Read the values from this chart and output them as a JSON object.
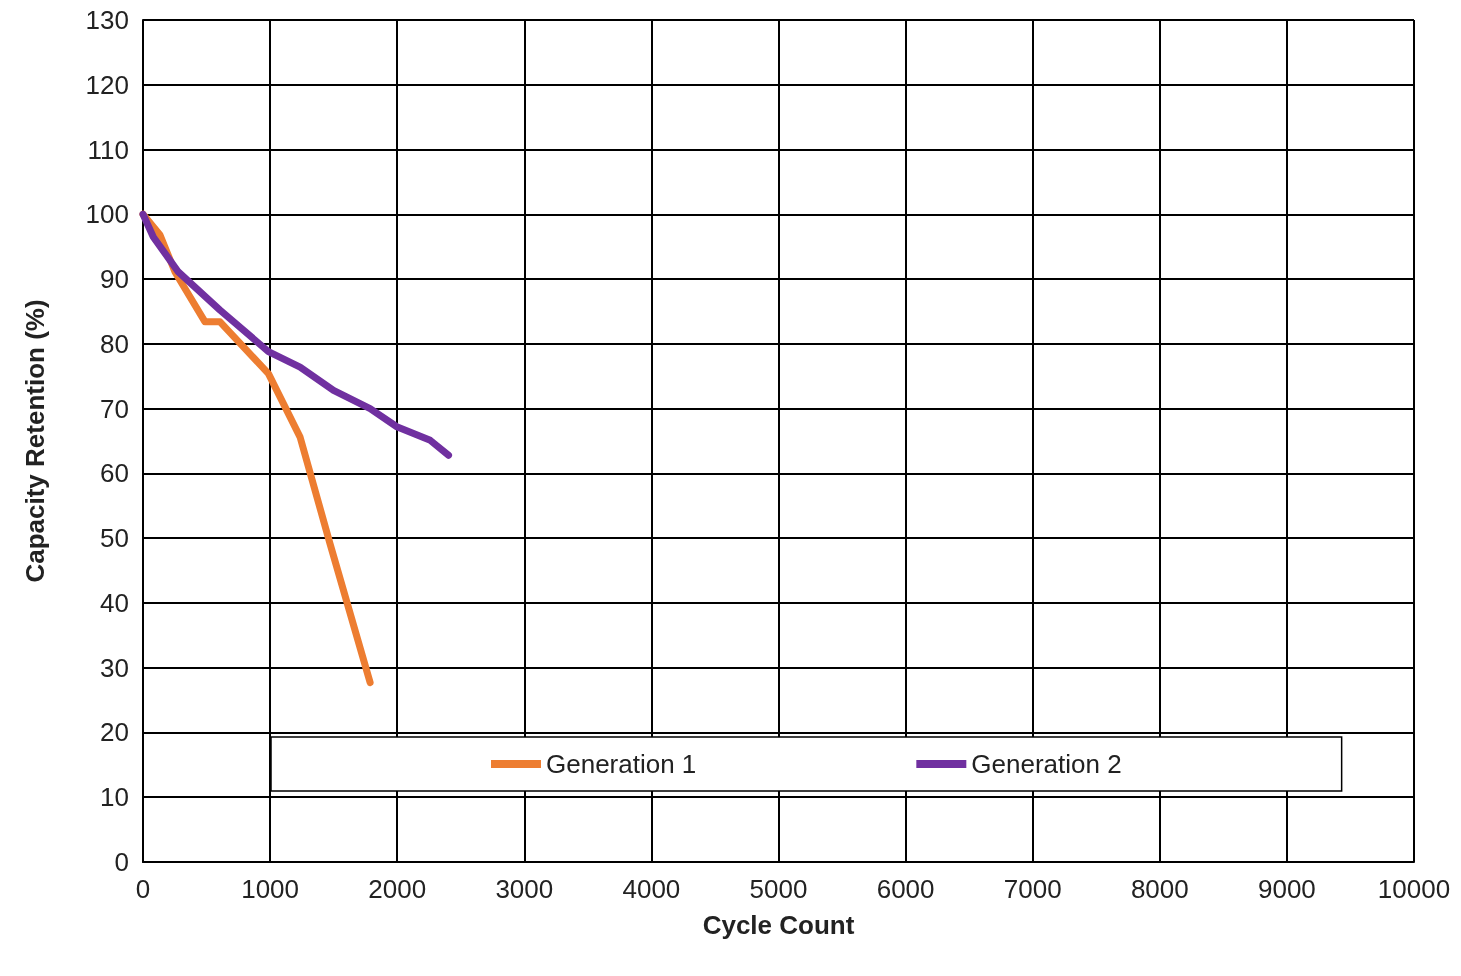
{
  "chart_data": {
    "type": "line",
    "xlabel": "Cycle Count",
    "ylabel": "Capacity Retention (%)",
    "xlim": [
      0,
      10000
    ],
    "xticks": [
      0,
      1000,
      2000,
      3000,
      4000,
      5000,
      6000,
      7000,
      8000,
      9000,
      10000
    ],
    "ylim": [
      0,
      130
    ],
    "yticks": [
      0,
      10,
      20,
      30,
      40,
      50,
      60,
      70,
      80,
      90,
      100,
      110,
      120,
      130
    ],
    "grid": true,
    "legend": "bottom",
    "marker": "none",
    "line_style": "solid",
    "series": [
      {
        "name": "Generation 1",
        "color": "#ed7d31",
        "x": [
          0,
          134,
          252,
          488,
          606,
          987,
          1236,
          1472,
          1787
        ],
        "values": [
          100,
          96.8,
          91.1,
          83.4,
          83.4,
          75.4,
          65.6,
          49.1,
          27.7
        ]
      },
      {
        "name": "Generation 2",
        "color": "#7030a0",
        "x": [
          0,
          81,
          278,
          606,
          987,
          1236,
          1499,
          1787,
          1997,
          2260,
          2404
        ],
        "values": [
          100,
          96.5,
          91.1,
          85.2,
          78.8,
          76.4,
          72.8,
          70,
          67.2,
          65.1,
          62.8
        ]
      }
    ]
  }
}
